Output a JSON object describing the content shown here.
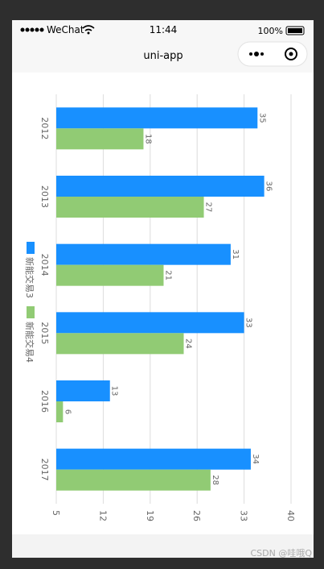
{
  "status_bar": {
    "carrier": "WeChat",
    "time": "11:44",
    "battery": "100%"
  },
  "nav": {
    "title": "uni-app"
  },
  "watermark": "CSDN @哇哦Q",
  "chart_data": {
    "type": "bar",
    "orientation": "horizontal",
    "categories": [
      "2012",
      "2013",
      "2014",
      "2015",
      "2016",
      "2017"
    ],
    "series": [
      {
        "name": "新能交易3",
        "color": "#1890ff",
        "values": [
          35,
          36,
          31,
          33,
          13,
          34
        ]
      },
      {
        "name": "新能交易4",
        "color": "#91cb74",
        "values": [
          18,
          27,
          21,
          24,
          6,
          28
        ]
      }
    ],
    "xlim": [
      5,
      40
    ],
    "xticks": [
      5,
      12,
      19,
      26,
      33,
      40
    ],
    "grid": true,
    "legend": "left"
  }
}
